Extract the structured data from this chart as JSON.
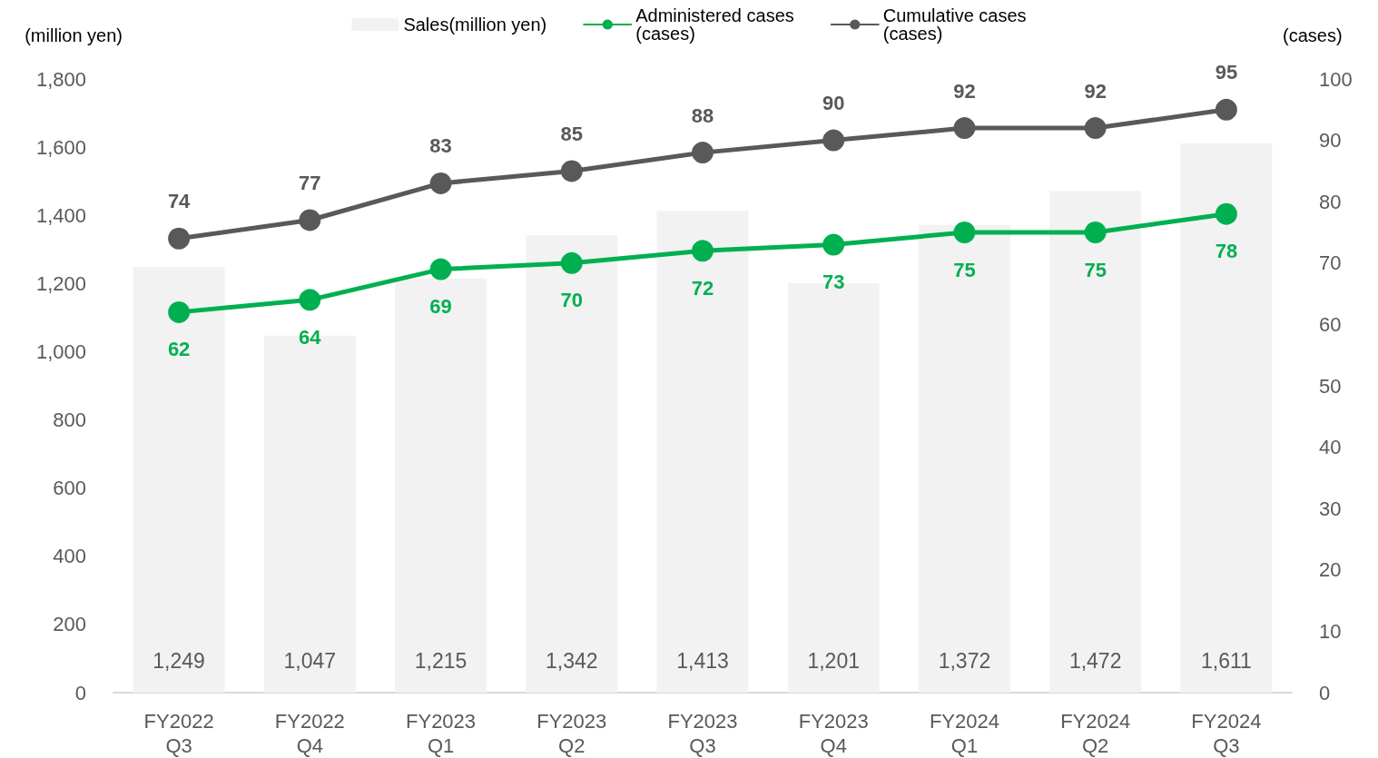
{
  "chart_data": {
    "type": "bar",
    "categories": [
      "FY2022\nQ3",
      "FY2022\nQ4",
      "FY2023\nQ1",
      "FY2023\nQ2",
      "FY2023\nQ3",
      "FY2023\nQ4",
      "FY2024\nQ1",
      "FY2024\nQ2",
      "FY2024\nQ3"
    ],
    "ylabel": "(million yen)",
    "y2label": "(cases)",
    "ylim": [
      0,
      1800
    ],
    "yticks": [
      0,
      200,
      400,
      600,
      800,
      {
        "value": 1000,
        "label": "1,000"
      },
      {
        "value": 1200,
        "label": "1,200"
      },
      {
        "value": 1400,
        "label": "1,400"
      },
      {
        "value": 1600,
        "label": "1,600"
      },
      {
        "value": 1800,
        "label": "1,800"
      }
    ],
    "y2lim": [
      0,
      100
    ],
    "y2ticks": [
      0,
      10,
      20,
      30,
      40,
      50,
      60,
      70,
      80,
      90,
      100
    ],
    "grid": false,
    "legend": "top",
    "marker": "circle",
    "line_style": "solid",
    "series": [
      {
        "name": "Sales(million yen)",
        "color": "#f2f2f2",
        "values": [
          1249,
          1047,
          1215,
          1342,
          1413,
          1201,
          1372,
          1472,
          1611
        ],
        "value_labels": [
          "1,249",
          "1,047",
          "1,215",
          "1,342",
          "1,413",
          "1,201",
          "1,372",
          "1,472",
          "1,611"
        ]
      },
      {
        "name": "Administered cases\n(cases)",
        "type": "line",
        "axis": "y2",
        "color": "#00b050",
        "values": [
          62,
          64,
          69,
          70,
          72,
          73,
          75,
          75,
          78
        ],
        "value_labels": [
          "62",
          "64",
          "69",
          "70",
          "72",
          "73",
          "75",
          "75",
          "78"
        ]
      },
      {
        "name": "Cumulative cases\n(cases)",
        "type": "line",
        "axis": "y2",
        "color": "#595959",
        "values": [
          74,
          77,
          83,
          85,
          88,
          90,
          92,
          92,
          95
        ],
        "value_labels": [
          "74",
          "77",
          "83",
          "85",
          "88",
          "90",
          "92",
          "92",
          "95"
        ]
      }
    ]
  }
}
